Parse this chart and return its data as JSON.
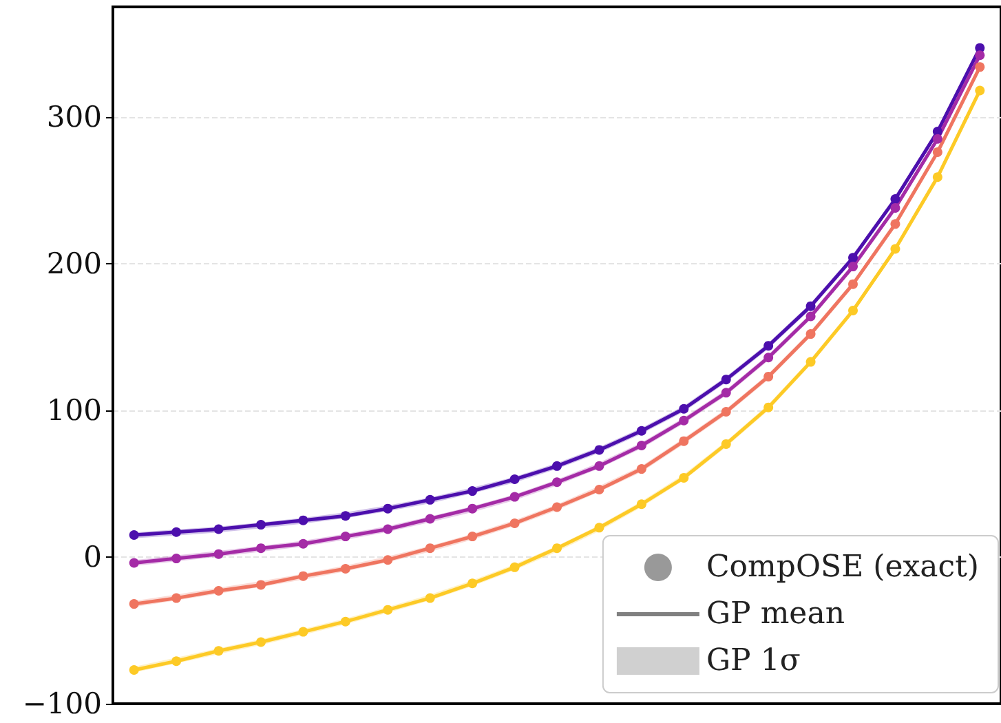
{
  "chart_data": {
    "type": "line",
    "categories": [
      null,
      null,
      null,
      null,
      null,
      null,
      null,
      null,
      null,
      null,
      null,
      null,
      null,
      null,
      null,
      null,
      null,
      null,
      null,
      null,
      null
    ],
    "series": [
      {
        "color": "#4c0fad",
        "marker": "circle",
        "values": [
          15,
          17,
          19,
          22,
          25,
          28,
          33,
          39,
          45,
          53,
          62,
          73,
          86,
          101,
          121,
          144,
          171,
          204,
          244,
          290,
          347
        ],
        "lower": [
          12.8,
          14.7,
          16.8,
          19.6,
          22.7,
          26.5,
          31.2,
          36.6,
          43.4,
          50.7,
          60.1,
          71,
          84,
          99,
          119,
          142,
          169,
          202,
          242,
          288,
          345
        ],
        "upper": [
          16.8,
          18.7,
          20.8,
          23.6,
          26.7,
          30.5,
          35.2,
          40.6,
          47.4,
          54.7,
          64.1,
          75,
          88,
          103,
          123,
          146,
          173,
          206,
          246,
          292,
          349
        ]
      },
      {
        "color": "#a42ba6",
        "marker": "circle",
        "values": [
          -4,
          -1,
          2,
          6,
          9,
          14,
          19,
          26,
          33,
          41,
          51,
          62,
          76,
          93,
          112,
          136,
          164,
          198,
          238,
          285,
          342
        ],
        "lower": [
          -6.1,
          -2.9,
          0.2,
          3.6,
          7.1,
          11.8,
          17.1,
          23.7,
          30.6,
          38.7,
          48.8,
          60.4,
          74,
          91,
          110,
          134,
          162,
          196,
          236,
          283,
          340
        ],
        "upper": [
          -2.1,
          1.1,
          4.2,
          7.6,
          11.1,
          15.8,
          21.1,
          27.7,
          34.6,
          42.7,
          52.8,
          64.4,
          78,
          95,
          114,
          138,
          166,
          200,
          240,
          287,
          344
        ]
      },
      {
        "color": "#ef7560",
        "marker": "circle",
        "values": [
          -32,
          -28,
          -23,
          -19,
          -13,
          -8,
          -2,
          6,
          14,
          23,
          34,
          46,
          60,
          79,
          99,
          123,
          152,
          186,
          227,
          276,
          334
        ],
        "lower": [
          -34,
          -29.6,
          -24.9,
          -20.5,
          -15.4,
          -9.8,
          -3.6,
          3.6,
          11.8,
          21.2,
          31.9,
          44.4,
          58,
          77,
          97,
          121,
          150,
          184,
          225,
          274,
          332
        ],
        "upper": [
          -30,
          -25.6,
          -20.9,
          -16.5,
          -11.4,
          -5.8,
          0.4,
          7.6,
          15.8,
          25.2,
          35.9,
          48.4,
          62,
          81,
          101,
          125,
          154,
          188,
          229,
          278,
          336
        ]
      },
      {
        "color": "#fdca26",
        "marker": "circle",
        "values": [
          -77,
          -71,
          -64,
          -58,
          -51,
          -44,
          -36,
          -28,
          -18,
          -7,
          6,
          20,
          36,
          54,
          77,
          102,
          133,
          168,
          210,
          259,
          318
        ],
        "lower": [
          -78.8,
          -72.5,
          -66.2,
          -60,
          -53.1,
          -45.9,
          -38,
          -29.6,
          -19.9,
          -8.9,
          3.6,
          17.7,
          34,
          52.3,
          75,
          100,
          131,
          166,
          208,
          257,
          316
        ],
        "upper": [
          -74.8,
          -68.5,
          -62.2,
          -56,
          -49.1,
          -41.9,
          -34,
          -25.6,
          -15.9,
          -4.9,
          7.6,
          21.7,
          38,
          56.3,
          79,
          104,
          135,
          170,
          212,
          261,
          320
        ]
      },
      {
        "type": "scatter",
        "name": "CompOSE (exact)",
        "color": "#808080",
        "marker": "circle",
        "values": [
          null,
          null,
          null,
          null,
          null,
          null,
          null,
          null,
          null,
          null,
          null,
          null,
          null,
          null,
          null,
          null,
          null,
          null,
          null,
          null,
          null
        ]
      },
      {
        "type": "line",
        "name": "GP mean",
        "color": "#808080",
        "values": [
          null,
          null,
          null,
          null,
          null,
          null,
          null,
          null,
          null,
          null,
          null,
          null,
          null,
          null,
          null,
          null,
          null,
          null,
          null,
          null,
          null
        ]
      },
      {
        "type": "area",
        "name": "GP 1σ",
        "color": "#d0d0d0",
        "values": [
          null,
          null,
          null,
          null,
          null,
          null,
          null,
          null,
          null,
          null,
          null,
          null,
          null,
          null,
          null,
          null,
          null,
          null,
          null,
          null,
          null
        ]
      }
    ],
    "ylim": [
      -100,
      375
    ],
    "yticks": [
      -100,
      0,
      100,
      200,
      300
    ],
    "tick_labels": "y",
    "grid": "y",
    "legend": "bottom right"
  }
}
